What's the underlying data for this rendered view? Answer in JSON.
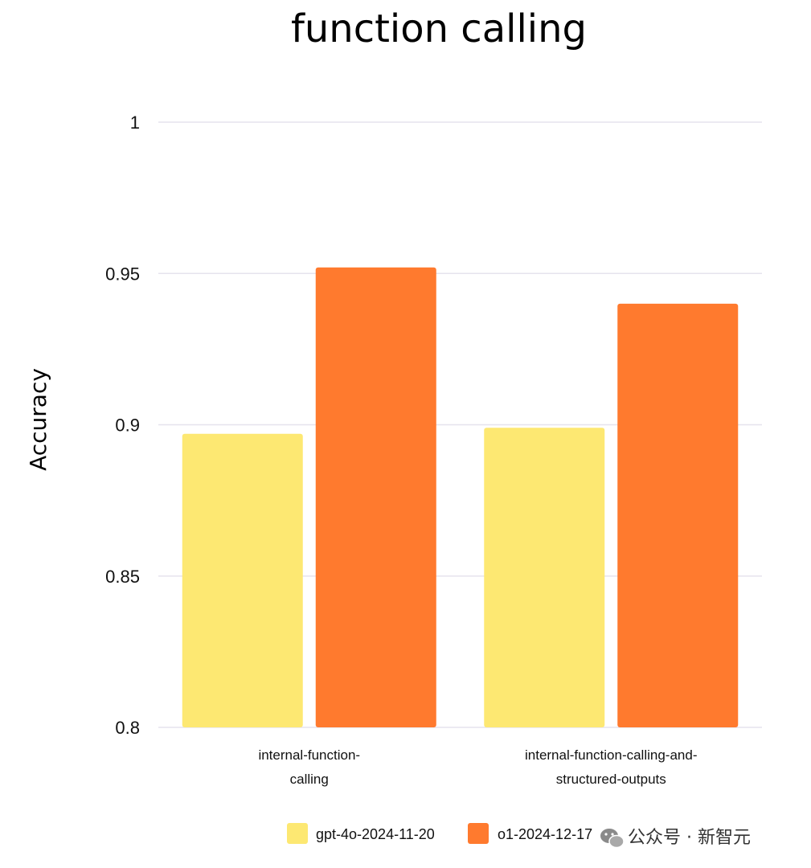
{
  "chart_data": {
    "type": "bar",
    "title": "function calling",
    "ylabel": "Accuracy",
    "xlabel": "",
    "ylim": [
      0.8,
      1.0
    ],
    "yticks": [
      {
        "value": 0.8,
        "label": "0.8"
      },
      {
        "value": 0.85,
        "label": "0.85"
      },
      {
        "value": 0.9,
        "label": "0.9"
      },
      {
        "value": 0.95,
        "label": "0.95"
      },
      {
        "value": 1.0,
        "label": "1"
      }
    ],
    "categories": [
      [
        "internal-function-",
        "calling"
      ],
      [
        "internal-function-calling-and-",
        "structured-outputs"
      ]
    ],
    "series": [
      {
        "name": "gpt-4o-2024-11-20",
        "color": "#FDE872",
        "values": [
          0.897,
          0.899
        ]
      },
      {
        "name": "o1-2024-12-17",
        "color": "#FF7A2E",
        "values": [
          0.952,
          0.94
        ]
      }
    ],
    "grid": true,
    "gridline_color": "#E6E3EE",
    "legend_position": "bottom"
  },
  "watermark": {
    "icon": "wechat-icon",
    "text": "公众号 · 新智元"
  }
}
